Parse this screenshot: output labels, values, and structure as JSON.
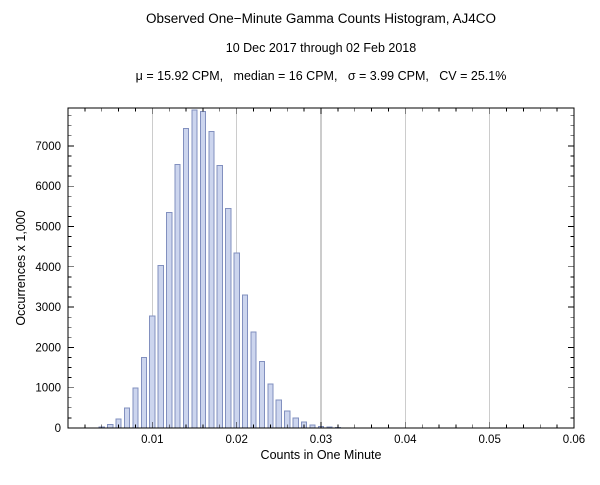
{
  "chart_data": {
    "type": "bar",
    "title": "Observed One−Minute Gamma Counts Histogram, AJ4CO",
    "subtitle": "10 Dec 2017 through 02 Feb 2018",
    "stats_line": "μ = 15.92 CPM,   median = 16 CPM,   σ = 3.99 CPM,   CV = 25.1%",
    "xlabel": "Counts in One Minute",
    "ylabel": "Occurrences x 1,000",
    "xlim": [
      0,
      0.06
    ],
    "ylim": [
      0,
      7940
    ],
    "x_major_ticks": [
      0.01,
      0.02,
      0.03,
      0.04,
      0.05,
      0.06
    ],
    "x_tick_labels": [
      "0.01",
      "0.02",
      "0.03",
      "0.04",
      "0.05",
      "0.06"
    ],
    "x_minor_step": 0.002,
    "y_major_ticks": [
      0,
      1000,
      2000,
      3000,
      4000,
      5000,
      6000,
      7000
    ],
    "y_tick_labels": [
      "0",
      "1000",
      "2000",
      "3000",
      "4000",
      "5000",
      "6000",
      "7000"
    ],
    "y_minor_step": 250,
    "grid": {
      "vertical_at": [
        0.01,
        0.02,
        0.03,
        0.04,
        0.05
      ],
      "color": "#9a9a9a"
    },
    "legend": "none",
    "bar": {
      "slot_width": 0.001,
      "width_fraction": 0.62,
      "fill": "#ccd5ee",
      "edge": "#8290bf"
    },
    "frame_color": "#000000",
    "x": [
      0.004,
      0.005,
      0.006,
      0.007,
      0.008,
      0.009,
      0.01,
      0.011,
      0.012,
      0.013,
      0.014,
      0.015,
      0.016,
      0.017,
      0.018,
      0.019,
      0.02,
      0.021,
      0.022,
      0.023,
      0.024,
      0.025,
      0.026,
      0.027,
      0.028,
      0.029,
      0.03,
      0.031,
      0.032
    ],
    "values": [
      26,
      82,
      219,
      496,
      987,
      1746,
      2784,
      4028,
      5342,
      6543,
      7436,
      7896,
      7857,
      7357,
      6510,
      5449,
      4340,
      3295,
      2384,
      1647,
      1093,
      697,
      426,
      252,
      143,
      78,
      42,
      21,
      11
    ]
  }
}
